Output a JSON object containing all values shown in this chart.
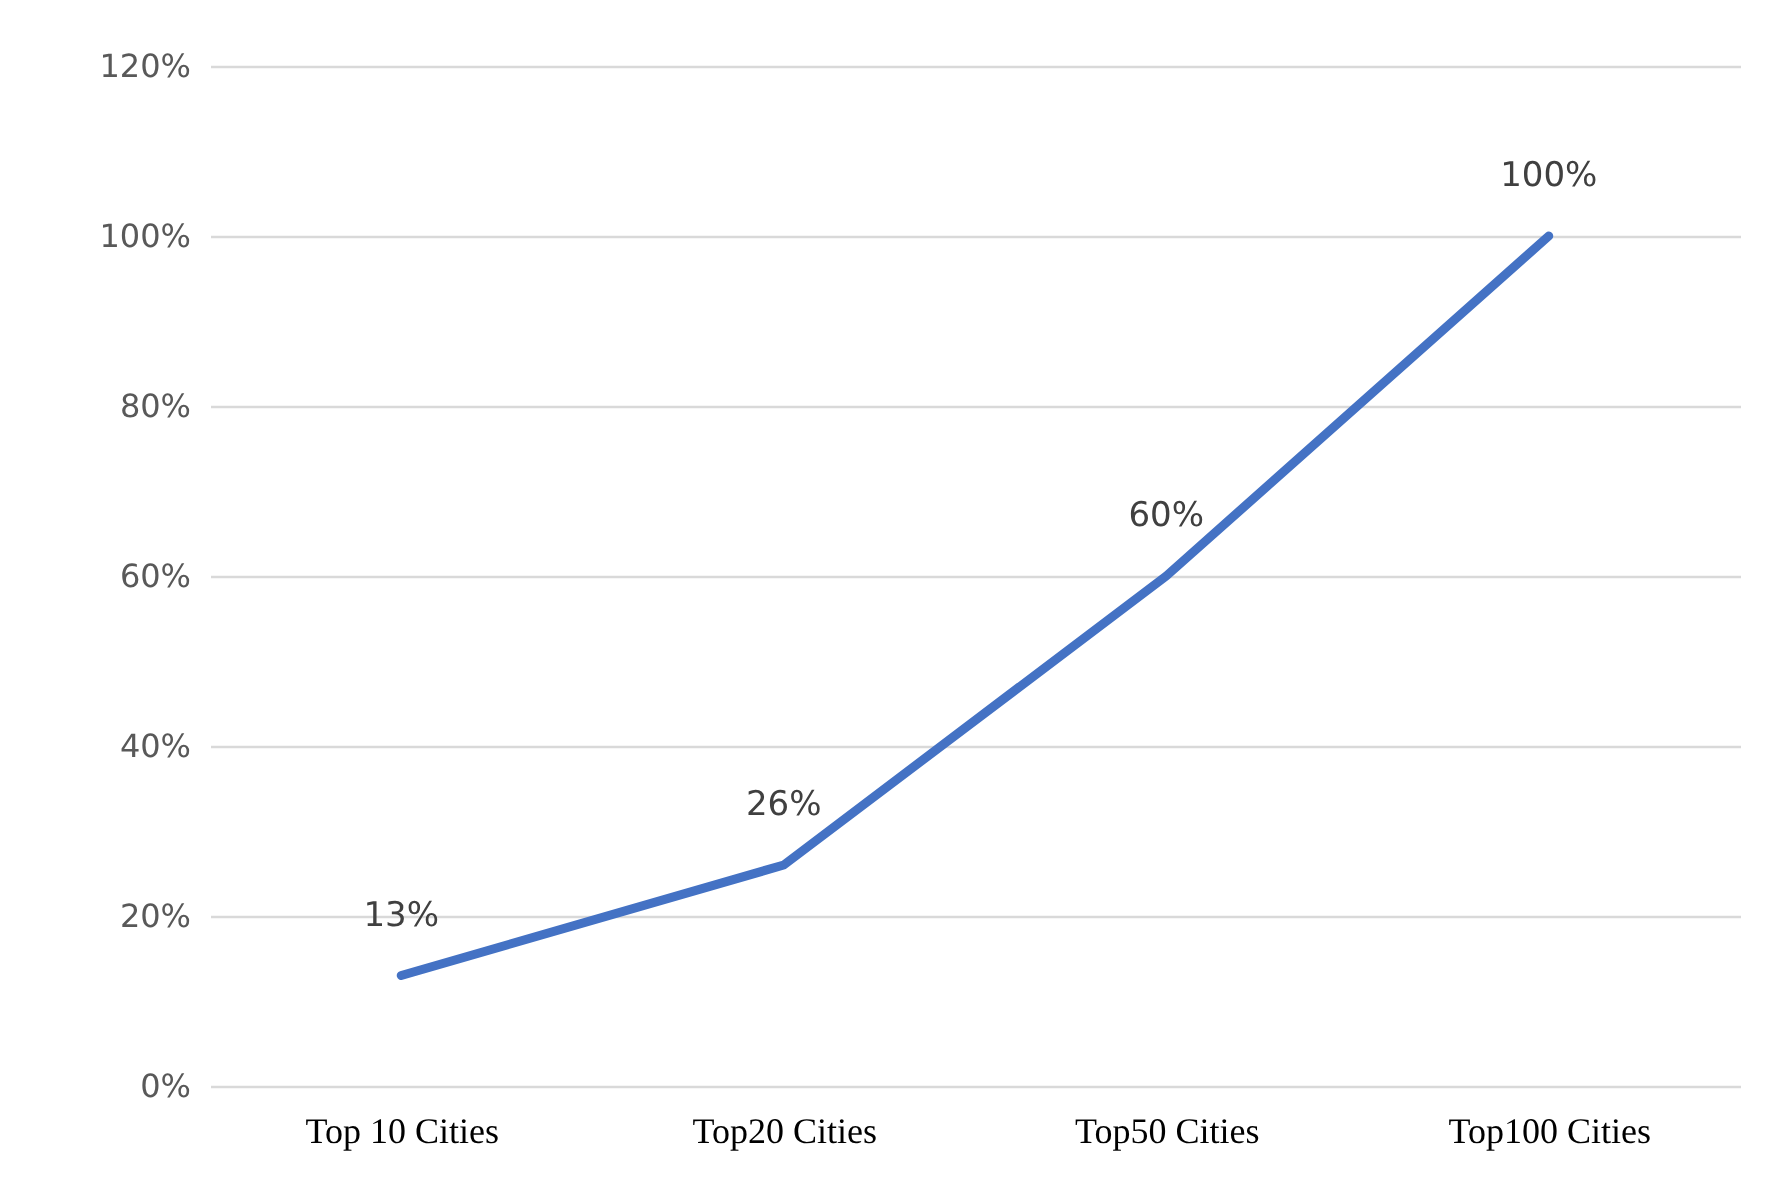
{
  "chart_data": {
    "type": "line",
    "categories": [
      "Top 10 Cities",
      "Top20 Cities",
      "Top50 Cities",
      "Top100 Cities"
    ],
    "series": [
      {
        "color": "#4472c4",
        "values": [
          13,
          26,
          60,
          100
        ],
        "value_labels": [
          "13%",
          "26%",
          "60%",
          "100%"
        ]
      }
    ],
    "ylim": [
      0,
      120
    ],
    "yticks": [
      {
        "value": 0,
        "label": "0%"
      },
      {
        "value": 20,
        "label": "20%"
      },
      {
        "value": 40,
        "label": "40%"
      },
      {
        "value": 60,
        "label": "60%"
      },
      {
        "value": 80,
        "label": "80%"
      },
      {
        "value": 100,
        "label": "100%"
      },
      {
        "value": 120,
        "label": "120%"
      }
    ],
    "grid": "y",
    "marker": "none",
    "line_style": "solid"
  }
}
